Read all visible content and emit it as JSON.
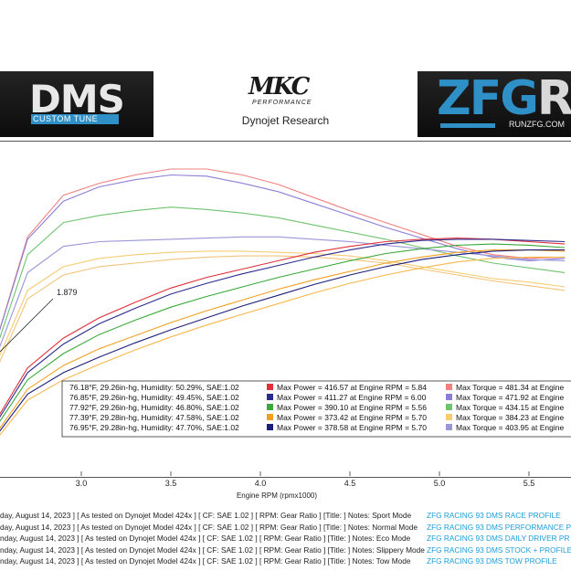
{
  "header": {
    "dms_logo": {
      "word": "DMS",
      "sub": "CUSTOM TUNE"
    },
    "mk_logo": {
      "word": "MKC",
      "sub": "PERFORMANCE"
    },
    "zfg_logo": {
      "word": "ZFG",
      "word_r": "R",
      "sub": "RUNZFG.COM"
    },
    "subtitle": "Dynojet Research"
  },
  "colors": {
    "run1": "#e0303a",
    "run2": "#2c2a8c",
    "run3": "#3aa83a",
    "run4": "#f0a020",
    "run5": "#1b1e78",
    "run6": "#f7c85a"
  },
  "chart_data": {
    "type": "line",
    "title": "",
    "xlabel": "Engine RPM (rpmx1000)",
    "ylabel": "",
    "xlim": [
      2.5,
      5.7
    ],
    "x_ticks": [
      "3.0",
      "3.5",
      "4.0",
      "4.5",
      "5.0",
      "5.5"
    ],
    "grid": false,
    "annotation": {
      "text": "1.879",
      "x": 2.6
    },
    "series": [
      {
        "name": "run1",
        "kind": "torque",
        "color": "#f08080",
        "x": [
          2.5,
          2.7,
          2.9,
          3.1,
          3.3,
          3.5,
          3.7,
          3.9,
          4.1,
          4.3,
          4.5,
          4.7,
          4.9,
          5.1,
          5.3,
          5.5,
          5.7
        ],
        "values": [
          200,
          300,
          335,
          345,
          352,
          357,
          357,
          352,
          344,
          333,
          322,
          312,
          302,
          292,
          285,
          282,
          283
        ]
      },
      {
        "name": "run2",
        "kind": "torque",
        "color": "#8a7fd6",
        "x": [
          2.5,
          2.7,
          2.9,
          3.1,
          3.3,
          3.5,
          3.7,
          3.9,
          4.1,
          4.3,
          4.5,
          4.7,
          4.9,
          5.1,
          5.3,
          5.5,
          5.7
        ],
        "values": [
          200,
          298,
          330,
          342,
          348,
          352,
          351,
          345,
          338,
          328,
          318,
          308,
          299,
          290,
          283,
          280,
          282
        ]
      },
      {
        "name": "run3",
        "kind": "torque",
        "color": "#6fc36f",
        "x": [
          2.5,
          2.7,
          2.9,
          3.1,
          3.3,
          3.5,
          3.7,
          3.9,
          4.1,
          4.3,
          4.5,
          4.7,
          4.9,
          5.1,
          5.3,
          5.5,
          5.7
        ],
        "values": [
          195,
          285,
          312,
          318,
          322,
          325,
          323,
          320,
          316,
          310,
          304,
          298,
          291,
          284,
          278,
          274,
          270
        ]
      },
      {
        "name": "run4",
        "kind": "torque",
        "color": "#9a96d8",
        "x": [
          2.5,
          2.7,
          2.9,
          3.1,
          3.3,
          3.5,
          3.7,
          3.9,
          4.1,
          4.3,
          4.5,
          4.7,
          4.9,
          5.1,
          5.3,
          5.5,
          5.7
        ],
        "values": [
          190,
          270,
          292,
          296,
          297,
          298,
          299,
          300,
          300,
          298,
          296,
          293,
          290,
          287,
          284,
          281,
          280
        ]
      },
      {
        "name": "run5",
        "kind": "torque",
        "color": "#f5cc72",
        "x": [
          2.5,
          2.7,
          2.9,
          3.1,
          3.3,
          3.5,
          3.7,
          3.9,
          4.1,
          4.3,
          4.5,
          4.7,
          4.9,
          5.1,
          5.3,
          5.5,
          5.7
        ],
        "values": [
          185,
          255,
          275,
          282,
          285,
          287,
          288,
          288,
          287,
          286,
          284,
          280,
          275,
          270,
          265,
          262,
          258
        ]
      },
      {
        "name": "run6",
        "kind": "torque",
        "color": "#f2c47a",
        "x": [
          2.5,
          2.7,
          2.9,
          3.1,
          3.3,
          3.5,
          3.7,
          3.9,
          4.1,
          4.3,
          4.5,
          4.7,
          4.9,
          5.1,
          5.3,
          5.5,
          5.7
        ],
        "values": [
          180,
          248,
          268,
          275,
          278,
          281,
          283,
          284,
          284,
          283,
          281,
          278,
          273,
          268,
          263,
          259,
          255
        ]
      },
      {
        "name": "run1-power",
        "kind": "power",
        "color": "#e0303a",
        "x": [
          2.5,
          2.7,
          2.9,
          3.1,
          3.3,
          3.5,
          3.7,
          3.9,
          4.1,
          4.3,
          4.5,
          4.7,
          4.9,
          5.1,
          5.3,
          5.5,
          5.7
        ],
        "values": [
          140,
          190,
          215,
          232,
          245,
          257,
          266,
          273,
          280,
          287,
          292,
          296,
          298,
          299,
          298,
          296,
          294
        ]
      },
      {
        "name": "run2-power",
        "kind": "power",
        "color": "#2c2a8c",
        "x": [
          2.5,
          2.7,
          2.9,
          3.1,
          3.3,
          3.5,
          3.7,
          3.9,
          4.1,
          4.3,
          4.5,
          4.7,
          4.9,
          5.1,
          5.3,
          5.5,
          5.7
        ],
        "values": [
          138,
          186,
          210,
          227,
          240,
          252,
          261,
          269,
          276,
          283,
          289,
          294,
          297,
          298,
          298,
          297,
          296
        ]
      },
      {
        "name": "run3-power",
        "kind": "power",
        "color": "#3aa83a",
        "x": [
          2.5,
          2.7,
          2.9,
          3.1,
          3.3,
          3.5,
          3.7,
          3.9,
          4.1,
          4.3,
          4.5,
          4.7,
          4.9,
          5.1,
          5.3,
          5.5,
          5.7
        ],
        "values": [
          135,
          180,
          202,
          218,
          230,
          241,
          250,
          258,
          266,
          273,
          280,
          286,
          290,
          293,
          294,
          293,
          291
        ]
      },
      {
        "name": "run4-power",
        "kind": "power",
        "color": "#f0a020",
        "x": [
          2.5,
          2.7,
          2.9,
          3.1,
          3.3,
          3.5,
          3.7,
          3.9,
          4.1,
          4.3,
          4.5,
          4.7,
          4.9,
          5.1,
          5.3,
          5.5,
          5.7
        ],
        "values": [
          130,
          172,
          192,
          206,
          217,
          228,
          238,
          247,
          256,
          264,
          271,
          278,
          283,
          287,
          289,
          289,
          288
        ]
      },
      {
        "name": "run5-power",
        "kind": "power",
        "color": "#1b1e78",
        "x": [
          2.5,
          2.7,
          2.9,
          3.1,
          3.3,
          3.5,
          3.7,
          3.9,
          4.1,
          4.3,
          4.5,
          4.7,
          4.9,
          5.1,
          5.3,
          5.5,
          5.7
        ],
        "values": [
          128,
          168,
          186,
          199,
          211,
          222,
          232,
          242,
          251,
          260,
          268,
          275,
          281,
          285,
          288,
          289,
          289
        ]
      },
      {
        "name": "run6-power",
        "kind": "power",
        "color": "#f7b84a",
        "x": [
          2.5,
          2.7,
          2.9,
          3.1,
          3.3,
          3.5,
          3.7,
          3.9,
          4.1,
          4.3,
          4.5,
          4.7,
          4.9,
          5.1,
          5.3,
          5.5,
          5.7
        ],
        "values": [
          125,
          163,
          180,
          193,
          205,
          216,
          226,
          235,
          244,
          253,
          261,
          268,
          274,
          279,
          282,
          283,
          283
        ]
      }
    ],
    "legend": [
      {
        "weather": "76.18°F, 29.26in-hg, Humidity: 50.29%, SAE:1.02",
        "power_color": "#e0303a",
        "power": "Max Power = 416.57 at Engine RPM = 5.84",
        "torque_color": "#f08080",
        "torque": "Max Torque = 481.34 at Engine"
      },
      {
        "weather": "76.85°F, 29.26in-hg, Humidity: 49.45%, SAE:1.02",
        "power_color": "#2c2a8c",
        "power": "Max Power = 411.27 at Engine RPM = 6.00",
        "torque_color": "#8a7fd6",
        "torque": "Max Torque = 471.92 at Engine"
      },
      {
        "weather": "77.92°F, 29.26in-hg, Humidity: 46.80%, SAE:1.02",
        "power_color": "#3aa83a",
        "power": "Max Power = 390.10 at Engine RPM = 5.56",
        "torque_color": "#6fc36f",
        "torque": "Max Torque = 434.15 at Engine"
      },
      {
        "weather": "77.39°F, 29.28in-hg, Humidity: 47.58%, SAE:1.02",
        "power_color": "#f0a020",
        "power": "Max Power = 373.42 at Engine RPM = 5.70",
        "torque_color": "#f5cc72",
        "torque": "Max Torque = 384.23 at Engine"
      },
      {
        "weather": "76.95°F, 29.28in-hg, Humidity: 47.70%, SAE:1.02",
        "power_color": "#1b1e78",
        "power": "Max Power = 378.58 at Engine RPM = 5.70",
        "torque_color": "#9a96d8",
        "torque": "Max Torque = 403.95 at Engine"
      }
    ]
  },
  "notes": [
    {
      "text": "day, August 14, 2023 ] [ As tested on Dynojet Model 424x ] [ CF: SAE 1.02 ] [ RPM: Gear Ratio ] [Title: ]  Notes: Sport Mode",
      "profile": "ZFG RACING 93  DMS RACE PROFILE"
    },
    {
      "text": "day, August 14, 2023 ] [ As tested on Dynojet Model 424x ] [ CF: SAE 1.02 ] [ RPM: Gear Ratio ] [Title: ]  Notes: Normal Mode",
      "profile": "ZFG RACING 93  DMS PERFORMANCE P"
    },
    {
      "text": "nday, August 14, 2023 ] [ As tested on Dynojet Model 424x ] [ CF: SAE 1.02 ] [ RPM: Gear Ratio ] [Title: ]  Notes: Eco Mode",
      "profile": "ZFG RACING 93  DMS DAILY DRIVER PR"
    },
    {
      "text": "nday, August 14, 2023 ] [ As tested on Dynojet Model 424x ] [ CF: SAE 1.02 ] [ RPM: Gear Ratio ] [Title: ]  Notes: Slippery Mode",
      "profile": "ZFG RACING 93  DMS STOCK +  PROFILE"
    },
    {
      "text": "nday, August 14, 2023 ] [ As tested on Dynojet Model 424x ] [ CF: SAE 1.02 ] [ RPM: Gear Ratio ] [Title: ]  Notes: Tow Mode",
      "profile": "ZFG RACING 93  DMS TOW PROFILE"
    }
  ]
}
